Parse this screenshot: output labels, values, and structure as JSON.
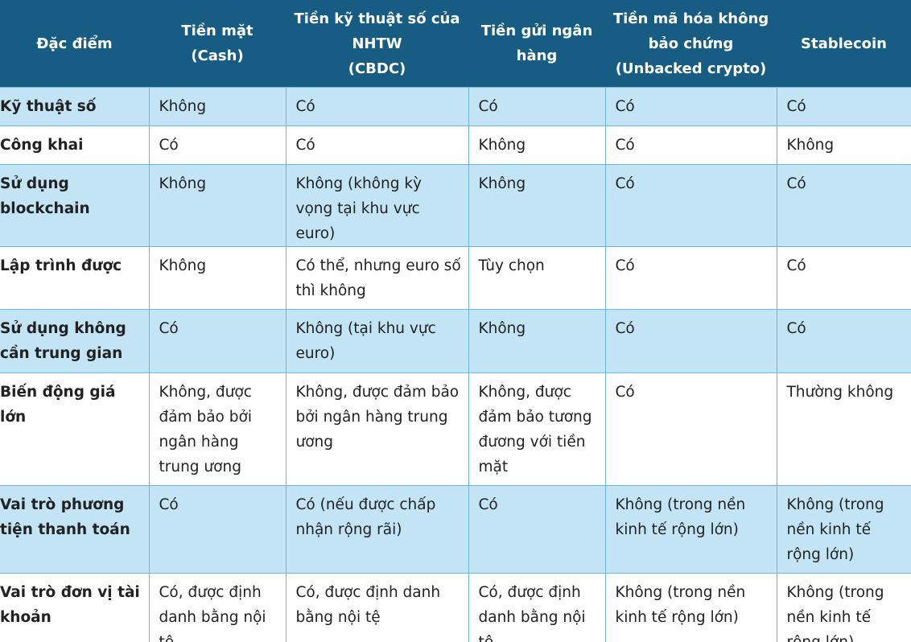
{
  "header": {
    "cells": [
      "Đặc điểm",
      "Tiền mặt\n(Cash)",
      "Tiền kỹ thuật số của\nNHTW\n(CBDC)",
      "Tiền gửi ngân\nhàng",
      "Tiền mã hóa không\nbảo chứng\n(Unbacked crypto)",
      "Stablecoin"
    ]
  },
  "table": {
    "rows": [
      [
        "Kỹ thuật số",
        "Không",
        "Có",
        "Có",
        "Có",
        "Có"
      ],
      [
        "Công khai",
        "Có",
        "Có",
        "Không",
        "Có",
        "Không"
      ],
      [
        "Sử dụng blockchain",
        "Không",
        "Không (không kỳ vọng tại khu vực euro)",
        "Không",
        "Có",
        "Có"
      ],
      [
        "Lập trình được",
        "Không",
        "Có thể, nhưng euro số thì không",
        "Tùy chọn",
        "Có",
        "Có"
      ],
      [
        "Sử dụng không cần trung gian",
        "Có",
        "Không (tại khu vực euro)",
        "Không",
        "Có",
        "Có"
      ],
      [
        "Biến động giá lớn",
        "Không, được đảm bảo bởi ngân hàng trung ương",
        "Không, được đảm bảo bởi ngân hàng trung ương",
        "Không, được đảm bảo tương đương với tiền mặt",
        "Có",
        "Thường không"
      ],
      [
        "Vai trò phương tiện thanh toán",
        "Có",
        "Có (nếu được chấp nhận rộng rãi)",
        "Có",
        "Không (trong nền kinh tế rộng lớn)",
        "Không (trong nền kinh tế rộng lớn)"
      ],
      [
        "Vai trò đơn vị tài khoản",
        "Có, được định danh bằng nội tệ",
        "Có, được định danh bằng nội tệ",
        "Có, được định danh bằng nội tệ",
        "Không (trong nền kinh tế rộng lớn)",
        "Không (trong nền kinh tế rộng lớn)"
      ]
    ]
  }
}
